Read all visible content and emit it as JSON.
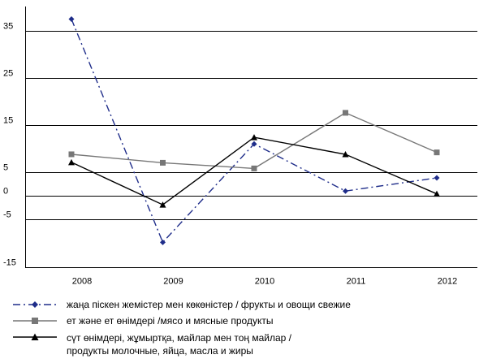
{
  "chart_data": {
    "type": "line",
    "title": "",
    "xlabel": "",
    "ylabel": "",
    "categories": [
      "2008",
      "2009",
      "2010",
      "2011",
      "2012"
    ],
    "y_ticks": [
      35,
      25,
      15,
      5,
      0,
      -5,
      -15
    ],
    "ylim": [
      -15,
      40
    ],
    "grid": "horizontal at labeled ticks",
    "legend_position": "bottom",
    "series": [
      {
        "name": "жаңа піскен жемістер мен көкөністер /  фрукты и овощи свежие",
        "values": [
          37.5,
          -9.8,
          11.0,
          1.0,
          3.8
        ],
        "color": "#1f2d8a",
        "marker": "diamond",
        "dash": "dash-dot"
      },
      {
        "name": "ет және ет өнімдері /мясо и мясные продукты",
        "values": [
          8.8,
          7.0,
          5.8,
          17.6,
          9.2
        ],
        "color": "#777777",
        "marker": "square",
        "dash": "solid"
      },
      {
        "name": "сүт өнімдері, жұмыртқа, майлар мен тоң майлар /\nпродукты молочные, яйца, масла и жиры",
        "values": [
          7.1,
          -1.9,
          12.4,
          8.8,
          0.4
        ],
        "color": "#000000",
        "marker": "triangle",
        "dash": "solid"
      }
    ]
  }
}
